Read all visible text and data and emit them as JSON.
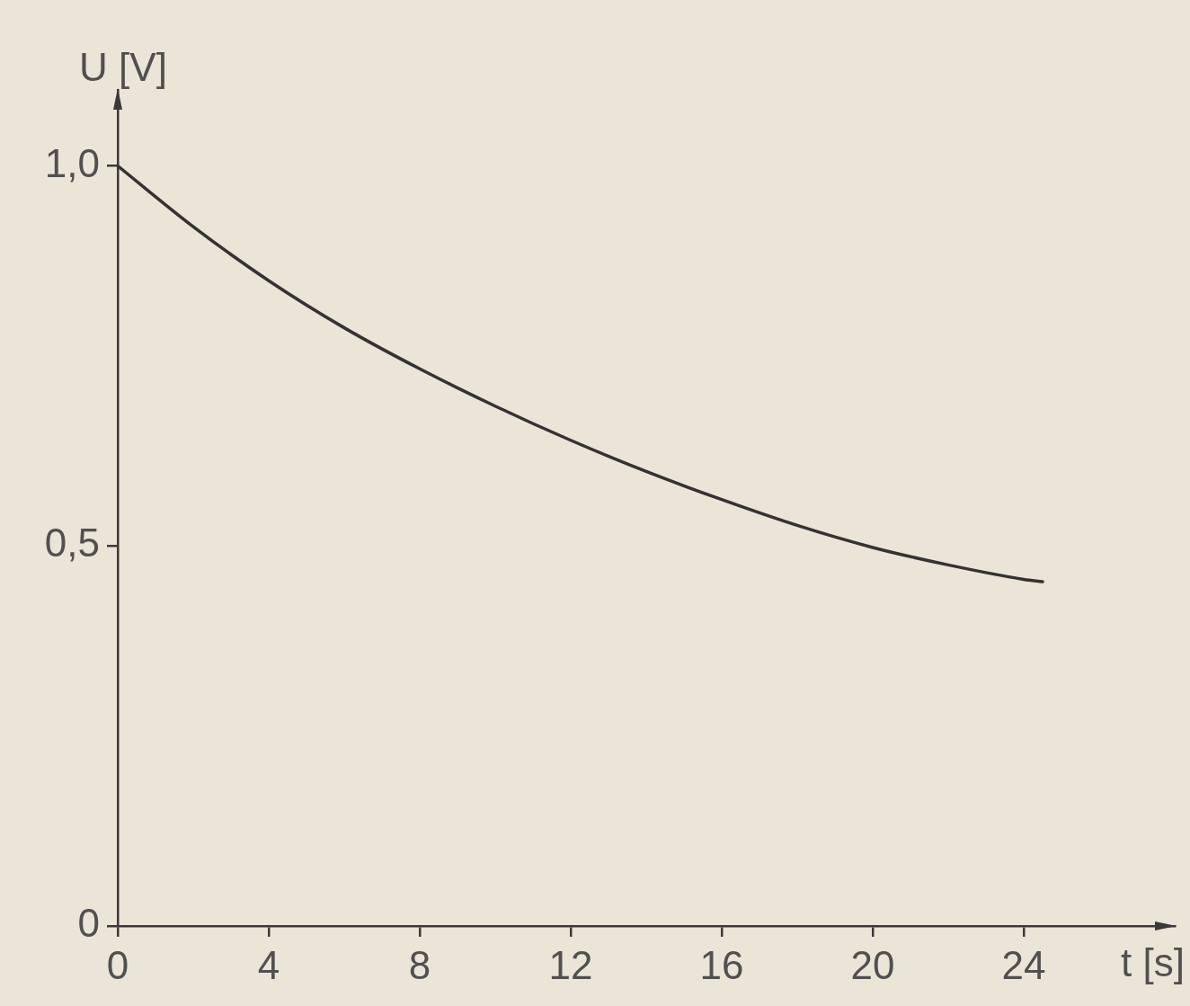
{
  "chart_data": {
    "type": "line",
    "xlabel": "t [s]",
    "ylabel": "U [V]",
    "x": [
      0,
      2,
      4,
      6,
      8,
      10,
      12,
      14,
      16,
      18,
      20,
      22,
      24,
      24.5
    ],
    "series": [
      {
        "color": "#333333",
        "values": [
          1.0,
          0.92,
          0.849,
          0.787,
          0.733,
          0.684,
          0.639,
          0.598,
          0.561,
          0.527,
          0.498,
          0.475,
          0.456,
          0.453
        ]
      }
    ],
    "xlim": [
      0,
      28
    ],
    "ylim": [
      0,
      1.1
    ],
    "xticks": [
      0,
      4,
      8,
      12,
      16,
      20,
      24
    ],
    "yticks": [
      0,
      {
        "value": 0.5,
        "label": "0,5"
      },
      {
        "value": 1,
        "label": "1,0"
      }
    ]
  }
}
